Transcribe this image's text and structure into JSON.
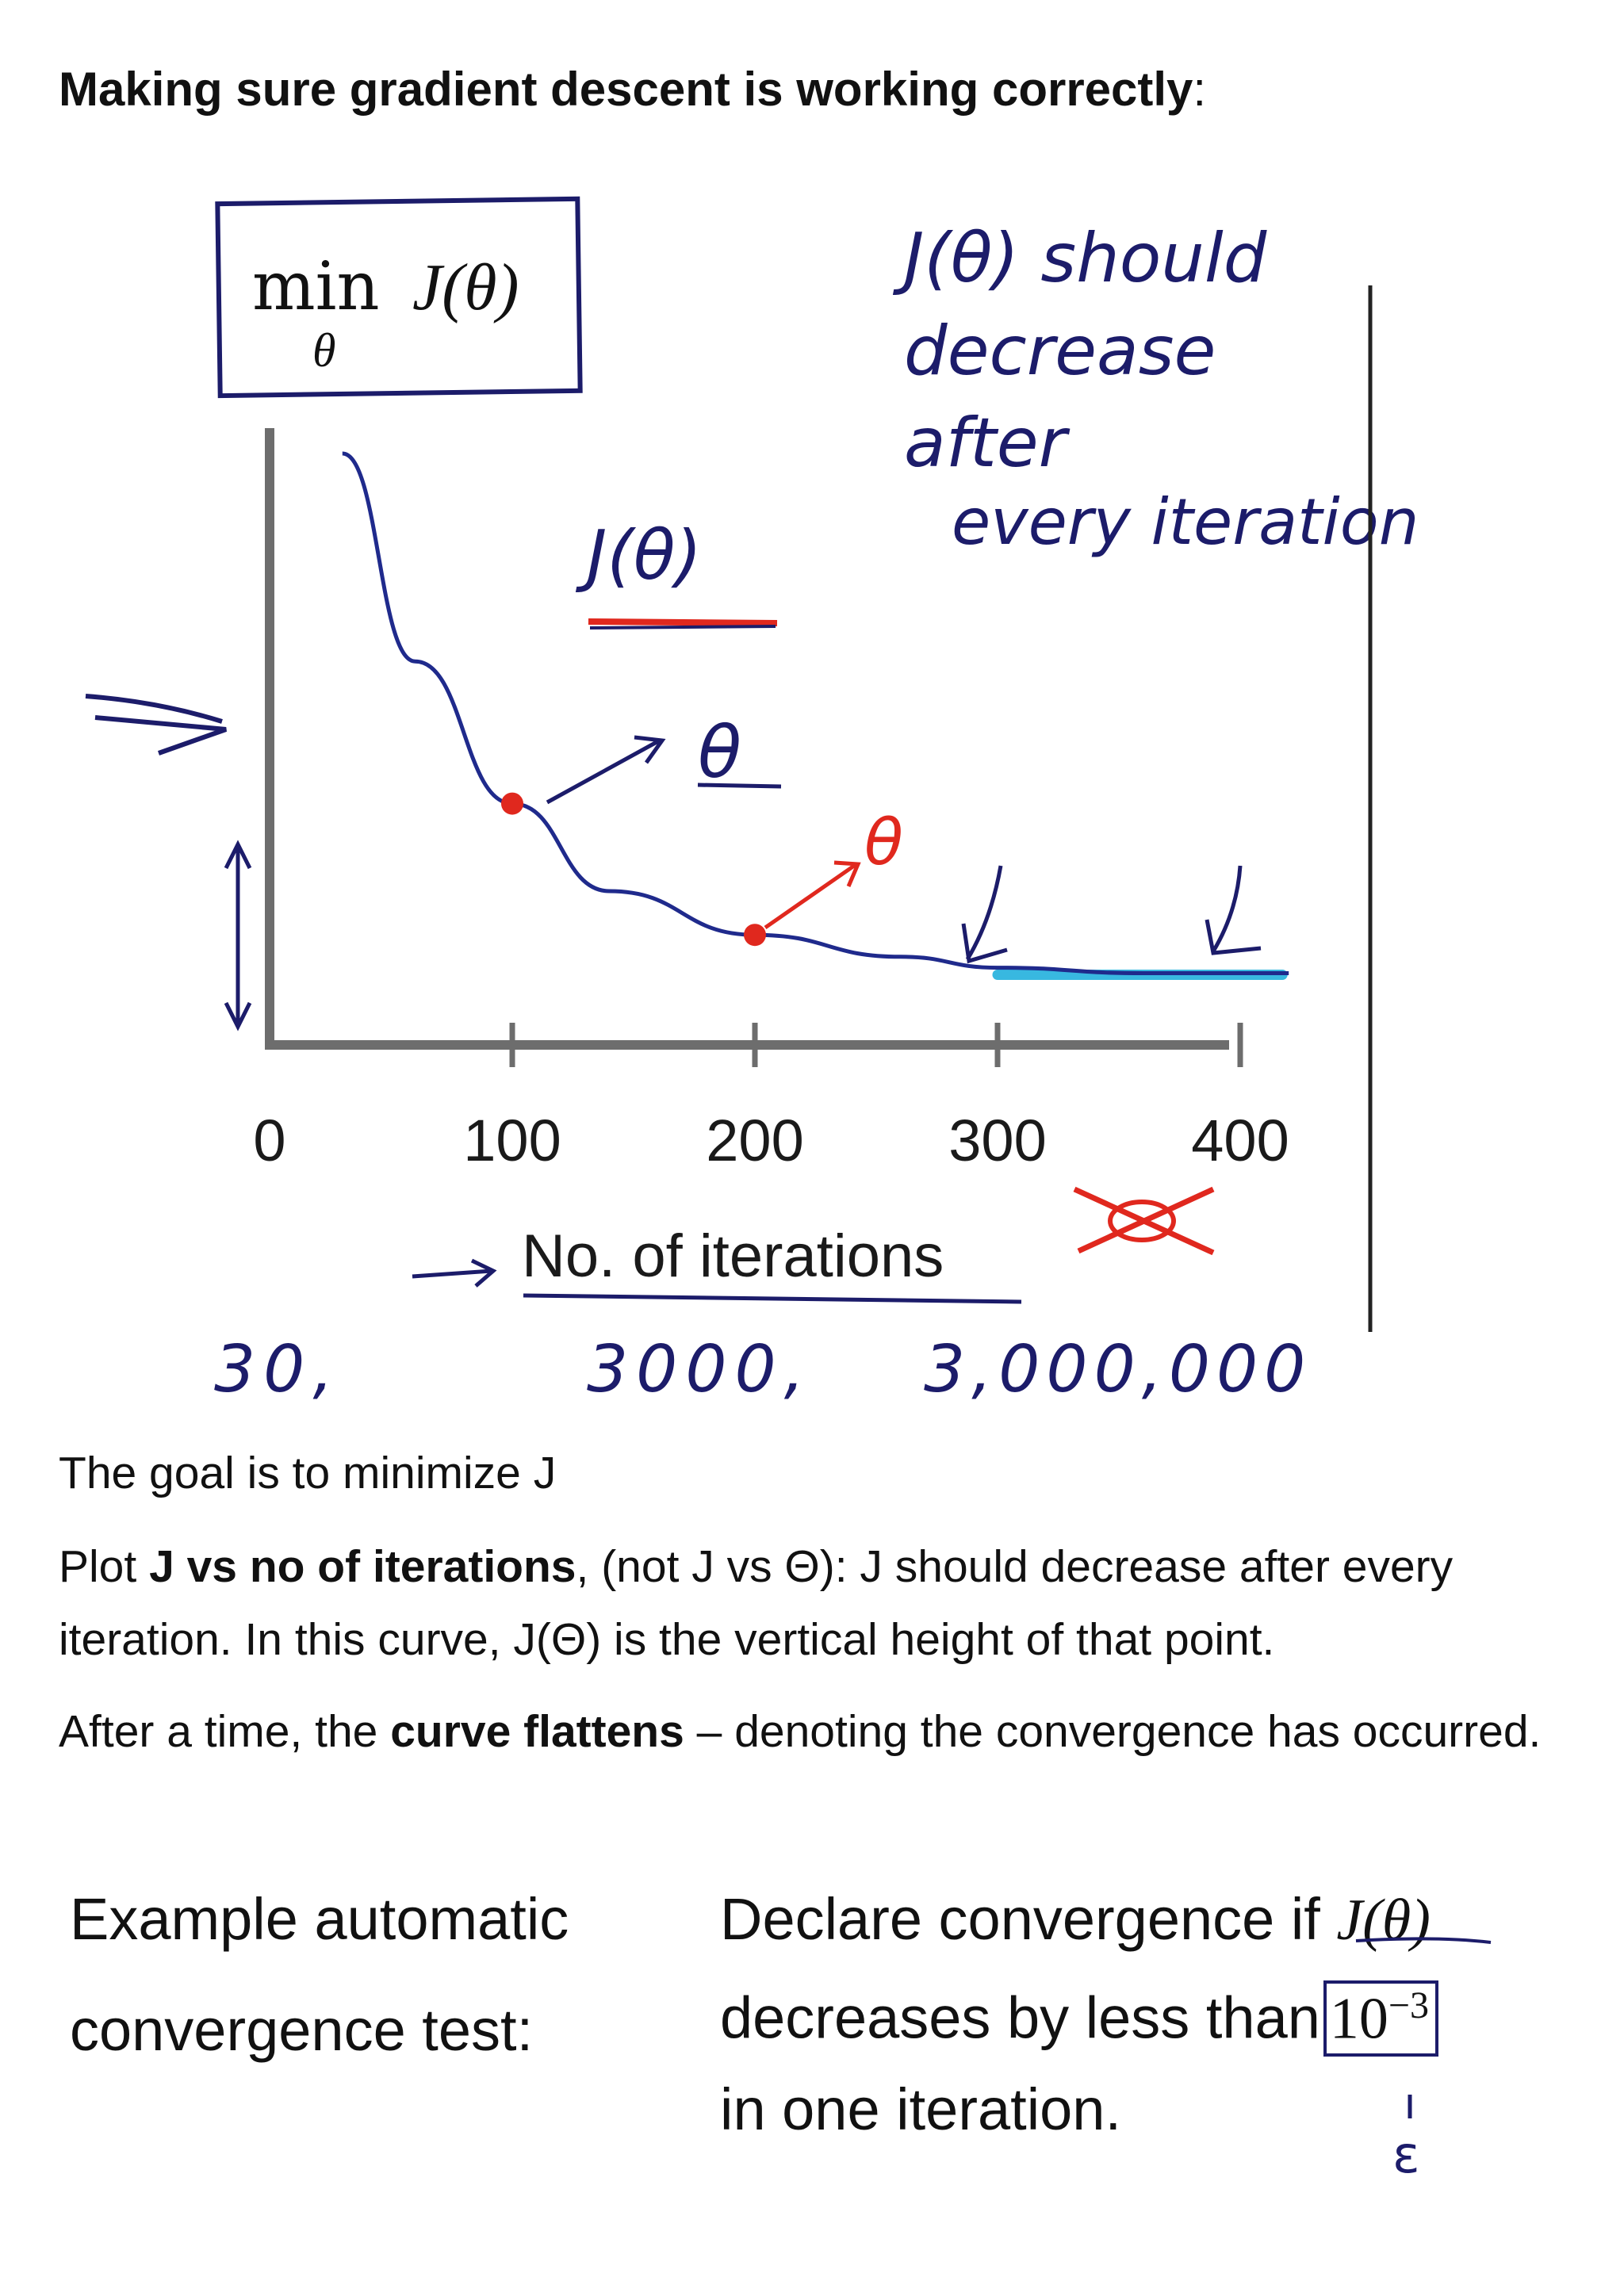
{
  "title": {
    "bold": "Making sure gradient descent is working correctly",
    "suffix": ":"
  },
  "figure": {
    "boxed_formula": {
      "op": "min",
      "func": "J(θ)",
      "sub": "θ"
    },
    "curve_label": "J(θ)",
    "theta_note_1": "θ",
    "theta_note_2": "θ",
    "annotation_lines": [
      "J(θ) should",
      "decrease",
      "after",
      "every iteration"
    ],
    "iteration_examples": [
      "30,",
      "3000,",
      "3,000,000"
    ]
  },
  "chart_data": {
    "type": "line",
    "x_ticks": [
      "0",
      "100",
      "200",
      "300",
      "400"
    ],
    "xlabel": "No. of iterations",
    "ylabel": "J(θ)",
    "xlim": [
      0,
      400
    ],
    "x": [
      30,
      60,
      100,
      140,
      200,
      260,
      300,
      360,
      420
    ],
    "y": [
      1.0,
      0.62,
      0.36,
      0.2,
      0.12,
      0.08,
      0.06,
      0.05,
      0.05
    ],
    "highlighted_points": [
      {
        "x": 100,
        "y": 0.36
      },
      {
        "x": 200,
        "y": 0.12
      }
    ],
    "flat_region": [
      300,
      420
    ],
    "grid": false
  },
  "text": {
    "goal": "The goal is to minimize J",
    "plot_pre": "Plot ",
    "plot_bold": "J vs no of iterations",
    "plot_post": ", (not J vs Θ): J should decrease after every iteration. In this curve, J(Θ) is the vertical height of that point.",
    "after_pre": "After a time, the ",
    "after_bold": "curve flattens",
    "after_post": " – denoting the convergence has occurred."
  },
  "convergence": {
    "left_line1": "Example automatic",
    "left_line2": "convergence test:",
    "right_line1": "Declare convergence if",
    "right_math": "J(θ)",
    "right_line2": "decreases by less than",
    "threshold_base": "10",
    "threshold_exp": "−3",
    "right_line3": "in one iteration.",
    "epsilon": "ε"
  },
  "colors": {
    "curve": "#1f2a8c",
    "points": "#e0281e",
    "flat": "#38b8e0",
    "axis": "#6d6d6d",
    "ink": "#1c1c6a"
  }
}
